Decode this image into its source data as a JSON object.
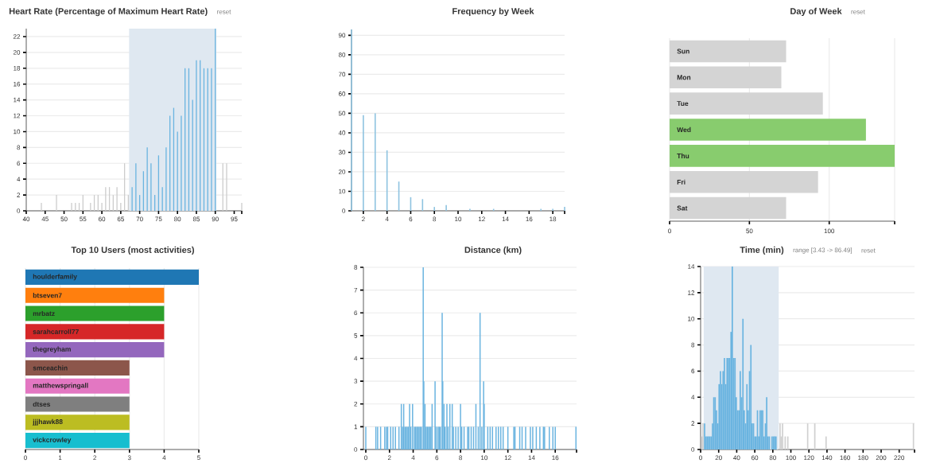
{
  "chart_data": [
    {
      "type": "bar",
      "title": "Heart Rate (Percentage of Maximum Heart Rate)",
      "annotations": [
        "reset"
      ],
      "x": [
        44,
        48,
        52,
        53,
        54,
        55,
        57,
        58,
        59,
        60,
        61,
        62,
        63,
        64,
        65,
        66,
        67,
        68,
        69,
        70,
        71,
        72,
        73,
        74,
        75,
        76,
        77,
        78,
        79,
        80,
        81,
        82,
        83,
        84,
        85,
        86,
        87,
        88,
        89,
        90,
        92,
        93,
        97
      ],
      "values": [
        1,
        2,
        1,
        1,
        1,
        2,
        1,
        2,
        2,
        1,
        3,
        3,
        2,
        3,
        1,
        6,
        2,
        3,
        6,
        2,
        5,
        8,
        6,
        2,
        7,
        3,
        8,
        12,
        13,
        10,
        12,
        18,
        18,
        14,
        19,
        19,
        18,
        18,
        18,
        23,
        6,
        6,
        1
      ],
      "colors": [
        "#cccccc",
        "#cccccc",
        "#cccccc",
        "#cccccc",
        "#cccccc",
        "#cccccc",
        "#cccccc",
        "#cccccc",
        "#cccccc",
        "#cccccc",
        "#cccccc",
        "#cccccc",
        "#cccccc",
        "#cccccc",
        "#cccccc",
        "#cccccc",
        "#cccccc",
        "#6ab4e0",
        "#6ab4e0",
        "#6ab4e0",
        "#6ab4e0",
        "#6ab4e0",
        "#6ab4e0",
        "#6ab4e0",
        "#6ab4e0",
        "#6ab4e0",
        "#6ab4e0",
        "#6ab4e0",
        "#6ab4e0",
        "#6ab4e0",
        "#6ab4e0",
        "#6ab4e0",
        "#6ab4e0",
        "#6ab4e0",
        "#6ab4e0",
        "#6ab4e0",
        "#6ab4e0",
        "#6ab4e0",
        "#6ab4e0",
        "#6ab4e0",
        "#cccccc",
        "#cccccc",
        "#cccccc"
      ],
      "bands": [
        {
          "axis": "x",
          "from": 67.2,
          "to": 90.3,
          "color": "#dfe8f1"
        }
      ],
      "xlim": [
        40,
        97
      ],
      "ylim": [
        0,
        23
      ],
      "xticks": [
        40,
        45,
        50,
        55,
        60,
        65,
        70,
        75,
        80,
        85,
        90,
        95,
        {
          "value": 97,
          "label": null
        }
      ],
      "yticks": [
        0,
        2,
        4,
        6,
        8,
        10,
        12,
        14,
        16,
        18,
        20,
        22
      ],
      "grid": "y"
    },
    {
      "type": "bar",
      "title": "Frequency by Week",
      "x": [
        1,
        2,
        3,
        4,
        5,
        6,
        7,
        8,
        9,
        11,
        13,
        17,
        18,
        19
      ],
      "values": [
        93,
        49,
        50,
        31,
        15,
        7,
        6,
        2,
        3,
        1,
        1,
        1,
        1,
        2
      ],
      "color": "#8ec3e0",
      "xlim": [
        1,
        19
      ],
      "ylim": [
        0,
        93
      ],
      "xticks": [
        2,
        4,
        6,
        8,
        10,
        12,
        14,
        16,
        18,
        {
          "value": 19,
          "label": null
        }
      ],
      "yticks": [
        0,
        10,
        20,
        30,
        40,
        50,
        60,
        70,
        80,
        90
      ],
      "grid": "y"
    },
    {
      "type": "bar",
      "orientation": "horizontal",
      "title": "Day of Week",
      "annotations": [
        "reset"
      ],
      "categories": [
        "Sun",
        "Mon",
        "Tue",
        "Wed",
        "Thu",
        "Fri",
        "Sat"
      ],
      "values": [
        73,
        70,
        96,
        123,
        141,
        93,
        73
      ],
      "colors": [
        "#d4d4d4",
        "#d4d4d4",
        "#d4d4d4",
        "#88cc6e",
        "#88cc6e",
        "#d4d4d4",
        "#d4d4d4"
      ],
      "xlim": [
        0,
        141
      ],
      "xticks": [
        0,
        50,
        100,
        {
          "value": 141,
          "label": null
        }
      ],
      "grid": "x"
    },
    {
      "type": "bar",
      "orientation": "horizontal",
      "title": "Top 10 Users (most activities)",
      "categories": [
        "houlderfamily",
        "btseven7",
        "mrbatz",
        "sarahcarroll77",
        "thegreyham",
        "smceachin",
        "matthewspringall",
        "dtses",
        "jjjhawk88",
        "vickcrowley"
      ],
      "values": [
        5,
        4,
        4,
        4,
        4,
        3,
        3,
        3,
        3,
        3
      ],
      "colors": [
        "#1f77b4",
        "#ff7f0e",
        "#2ca02c",
        "#d62728",
        "#9467bd",
        "#8c564b",
        "#e377c2",
        "#7f7f7f",
        "#bcbd22",
        "#17becf"
      ],
      "xlim": [
        0,
        5
      ],
      "xticks": [
        0,
        1,
        2,
        3,
        4,
        5
      ],
      "grid": "x"
    },
    {
      "type": "bar",
      "title": "Distance (km)",
      "x": [
        0,
        0.85,
        1,
        1.25,
        1.6,
        1.75,
        1.85,
        2.1,
        2.3,
        2.5,
        2.8,
        3,
        3.1,
        3.2,
        3.3,
        3.4,
        3.5,
        3.6,
        3.7,
        3.8,
        3.95,
        4.1,
        4.2,
        4.3,
        4.4,
        4.5,
        4.6,
        4.7,
        4.85,
        4.9,
        5,
        5.1,
        5.2,
        5.3,
        5.4,
        5.5,
        5.6,
        5.85,
        5.95,
        6.1,
        6.2,
        6.3,
        6.45,
        6.5,
        6.6,
        6.7,
        6.85,
        6.95,
        7.1,
        7.3,
        7.4,
        7.6,
        7.8,
        8,
        8.1,
        8.3,
        8.6,
        8.7,
        8.9,
        9.1,
        9.3,
        9.5,
        9.65,
        9.8,
        9.95,
        10,
        10.3,
        10.5,
        10.7,
        11,
        11.2,
        11.4,
        11.6,
        12,
        12.5,
        12.6,
        13,
        13.2,
        13.5,
        13.9,
        14.1,
        14.4,
        14.7,
        15,
        15.1,
        15.5,
        15.8,
        16,
        17.75
      ],
      "values": [
        1,
        1,
        1,
        1,
        1,
        1,
        1,
        1,
        1,
        1,
        1,
        2,
        1,
        2,
        1,
        1,
        1,
        1,
        2,
        1,
        2,
        1,
        1,
        1,
        1,
        1,
        1,
        1,
        8,
        3,
        2,
        1,
        1,
        1,
        1,
        1,
        2,
        3,
        1,
        1,
        1,
        1,
        6,
        3,
        2,
        1,
        2,
        1,
        2,
        2,
        1,
        1,
        1,
        2,
        1,
        1,
        1,
        1,
        1,
        1,
        2,
        1,
        6,
        1,
        3,
        2,
        1,
        1,
        1,
        1,
        1,
        1,
        1,
        1,
        1,
        1,
        1,
        1,
        1,
        1,
        1,
        1,
        1,
        1,
        1,
        1,
        1,
        1,
        1
      ],
      "color": "#6ab4e0",
      "xlim": [
        -0.2,
        17.8
      ],
      "ylim": [
        0,
        8
      ],
      "xticks": [
        0,
        2,
        4,
        6,
        8,
        10,
        12,
        14,
        16,
        {
          "value": 17.8,
          "label": null
        }
      ],
      "yticks": [
        0,
        1,
        2,
        3,
        4,
        5,
        6,
        7,
        8
      ],
      "grid": "y"
    },
    {
      "type": "bar",
      "title": "Time (min)",
      "annotations": [
        "range [3.43 -> 86.49]",
        "reset"
      ],
      "x": [
        1.5,
        2.6,
        4.4,
        5.9,
        7.3,
        8.8,
        10.2,
        11.7,
        13.2,
        14.6,
        16.1,
        17.6,
        19,
        20.5,
        22,
        23.4,
        24.9,
        26.4,
        27.8,
        29.3,
        30.8,
        32.2,
        33.7,
        35.1,
        36.6,
        38.1,
        39.5,
        41,
        42.5,
        43.9,
        45.4,
        46.9,
        48.3,
        49.8,
        51.3,
        52.7,
        54.2,
        55.7,
        57.1,
        58.6,
        60.1,
        61.5,
        63,
        64.4,
        65.9,
        67.4,
        68.8,
        70.3,
        71.8,
        73.2,
        74.7,
        76.2,
        79.1,
        80.6,
        82,
        83.5,
        88,
        89.3,
        90.8,
        93.7,
        96.6,
        118.6,
        126.5,
        139,
        235.8
      ],
      "values": [
        1,
        2,
        2,
        1,
        1,
        1,
        1,
        1,
        2,
        4,
        4,
        3,
        2,
        5,
        6,
        5,
        6,
        7,
        5,
        7,
        7,
        7,
        9,
        14,
        7,
        7,
        4,
        3,
        3,
        6,
        4,
        10,
        3,
        2,
        5,
        3,
        6,
        8,
        2,
        2,
        1,
        1,
        3,
        1,
        3,
        3,
        3,
        1,
        2,
        4,
        1,
        1,
        1,
        1,
        1,
        1,
        2,
        1,
        2,
        1,
        1,
        2,
        2,
        1,
        2
      ],
      "colors": [
        "#d0d0d0",
        "#d0d0d0",
        "#6ab4e0",
        "#6ab4e0",
        "#6ab4e0",
        "#6ab4e0",
        "#6ab4e0",
        "#6ab4e0",
        "#6ab4e0",
        "#6ab4e0",
        "#6ab4e0",
        "#6ab4e0",
        "#6ab4e0",
        "#6ab4e0",
        "#6ab4e0",
        "#6ab4e0",
        "#6ab4e0",
        "#6ab4e0",
        "#6ab4e0",
        "#6ab4e0",
        "#6ab4e0",
        "#6ab4e0",
        "#6ab4e0",
        "#6ab4e0",
        "#6ab4e0",
        "#6ab4e0",
        "#6ab4e0",
        "#6ab4e0",
        "#6ab4e0",
        "#6ab4e0",
        "#6ab4e0",
        "#6ab4e0",
        "#6ab4e0",
        "#6ab4e0",
        "#6ab4e0",
        "#6ab4e0",
        "#6ab4e0",
        "#6ab4e0",
        "#6ab4e0",
        "#6ab4e0",
        "#6ab4e0",
        "#6ab4e0",
        "#6ab4e0",
        "#6ab4e0",
        "#6ab4e0",
        "#6ab4e0",
        "#6ab4e0",
        "#6ab4e0",
        "#6ab4e0",
        "#6ab4e0",
        "#6ab4e0",
        "#6ab4e0",
        "#6ab4e0",
        "#6ab4e0",
        "#6ab4e0",
        "#6ab4e0",
        "#d0d0d0",
        "#d0d0d0",
        "#d0d0d0",
        "#d0d0d0",
        "#d0d0d0",
        "#d0d0d0",
        "#d0d0d0",
        "#d0d0d0",
        "#d0d0d0"
      ],
      "bands": [
        {
          "axis": "x",
          "from": 3.43,
          "to": 86.49,
          "color": "#dfe8f1"
        }
      ],
      "xlim": [
        0,
        237
      ],
      "ylim": [
        0,
        14
      ],
      "xticks": [
        0,
        20,
        40,
        60,
        80,
        100,
        120,
        140,
        160,
        180,
        200,
        220,
        {
          "value": 237,
          "label": null
        }
      ],
      "yticks": [
        0,
        2,
        4,
        6,
        8,
        10,
        12,
        14
      ],
      "grid": "y"
    }
  ]
}
